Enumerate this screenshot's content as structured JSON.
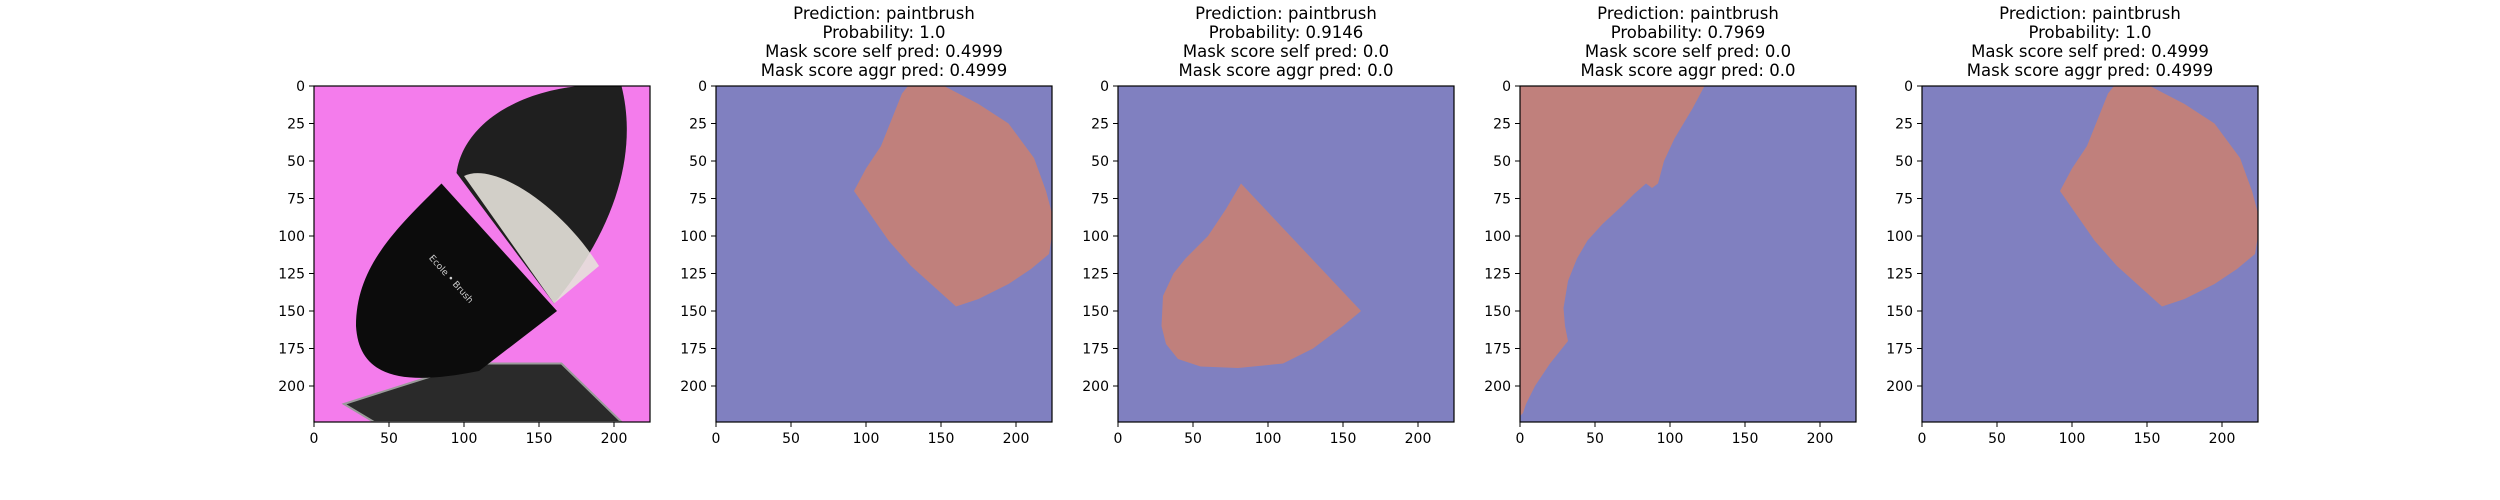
{
  "chart_data": [
    {
      "type": "image",
      "title_lines": [],
      "xlim": [
        0,
        224
      ],
      "ylim": [
        224,
        0
      ],
      "xticks": [
        0,
        50,
        100,
        150,
        200
      ],
      "yticks": [
        0,
        25,
        50,
        75,
        100,
        125,
        150,
        175,
        200
      ],
      "image": {
        "background": "#f47cec",
        "bristles": "#1f1f1f",
        "bristle_tips": "#e6e2da",
        "handle": "#0c0c0c",
        "base": "#2a2a2a",
        "handle_text": "Ecole • Brush"
      }
    },
    {
      "type": "heatmap",
      "title_lines": [
        "Prediction: paintbrush",
        "Probability: 1.0",
        "Mask score self pred: 0.4999",
        "Mask score aggr pred: 0.4999"
      ],
      "xlim": [
        0,
        224
      ],
      "ylim": [
        224,
        0
      ],
      "xticks": [
        0,
        50,
        100,
        150,
        200
      ],
      "yticks": [
        0,
        25,
        50,
        75,
        100,
        125,
        150,
        175,
        200
      ],
      "background_color": "#8080c0",
      "mask_color": "#c0807c",
      "mask_polygon": [
        [
          128,
          0
        ],
        [
          152,
          0
        ],
        [
          175,
          12
        ],
        [
          195,
          25
        ],
        [
          212,
          48
        ],
        [
          220,
          70
        ],
        [
          224,
          85
        ],
        [
          224,
          100
        ],
        [
          222,
          112
        ],
        [
          210,
          122
        ],
        [
          195,
          132
        ],
        [
          175,
          142
        ],
        [
          160,
          147
        ],
        [
          150,
          138
        ],
        [
          130,
          120
        ],
        [
          115,
          103
        ],
        [
          92,
          70
        ],
        [
          100,
          55
        ],
        [
          110,
          40
        ],
        [
          118,
          20
        ],
        [
          124,
          5
        ]
      ]
    },
    {
      "type": "heatmap",
      "title_lines": [
        "Prediction: paintbrush",
        "Probability: 0.9146",
        "Mask score self pred: 0.0",
        "Mask score aggr pred: 0.0"
      ],
      "xlim": [
        0,
        224
      ],
      "ylim": [
        224,
        0
      ],
      "xticks": [
        0,
        50,
        100,
        150,
        200
      ],
      "yticks": [
        0,
        25,
        50,
        75,
        100,
        125,
        150,
        175,
        200
      ],
      "background_color": "#8080c0",
      "mask_color": "#c0807c",
      "mask_polygon": [
        [
          82,
          65
        ],
        [
          162,
          150
        ],
        [
          150,
          160
        ],
        [
          130,
          175
        ],
        [
          110,
          185
        ],
        [
          80,
          188
        ],
        [
          55,
          187
        ],
        [
          40,
          182
        ],
        [
          32,
          172
        ],
        [
          29,
          160
        ],
        [
          30,
          140
        ],
        [
          37,
          125
        ],
        [
          45,
          115
        ],
        [
          60,
          100
        ],
        [
          72,
          82
        ]
      ]
    },
    {
      "type": "heatmap",
      "title_lines": [
        "Prediction: paintbrush",
        "Probability: 0.7969",
        "Mask score self pred: 0.0",
        "Mask score aggr pred: 0.0"
      ],
      "xlim": [
        0,
        224
      ],
      "ylim": [
        224,
        0
      ],
      "xticks": [
        0,
        50,
        100,
        150,
        200
      ],
      "yticks": [
        0,
        25,
        50,
        75,
        100,
        125,
        150,
        175,
        200
      ],
      "background_color": "#8080c0",
      "mask_color": "#c0807c",
      "mask_polygon": [
        [
          0,
          0
        ],
        [
          123,
          0
        ],
        [
          115,
          15
        ],
        [
          103,
          35
        ],
        [
          96,
          50
        ],
        [
          92,
          65
        ],
        [
          88,
          68
        ],
        [
          84,
          65
        ],
        [
          76,
          72
        ],
        [
          68,
          80
        ],
        [
          55,
          92
        ],
        [
          45,
          103
        ],
        [
          38,
          115
        ],
        [
          32,
          130
        ],
        [
          29,
          148
        ],
        [
          30,
          160
        ],
        [
          32,
          170
        ],
        [
          20,
          185
        ],
        [
          10,
          200
        ],
        [
          4,
          212
        ],
        [
          2,
          218
        ],
        [
          0,
          220
        ]
      ]
    },
    {
      "type": "heatmap",
      "title_lines": [
        "Prediction: paintbrush",
        "Probability: 1.0",
        "Mask score self pred: 0.4999",
        "Mask score aggr pred: 0.4999"
      ],
      "xlim": [
        0,
        224
      ],
      "ylim": [
        224,
        0
      ],
      "xticks": [
        0,
        50,
        100,
        150,
        200
      ],
      "yticks": [
        0,
        25,
        50,
        75,
        100,
        125,
        150,
        175,
        200
      ],
      "background_color": "#8080c0",
      "mask_color": "#c0807c",
      "mask_polygon": [
        [
          128,
          0
        ],
        [
          152,
          0
        ],
        [
          175,
          12
        ],
        [
          195,
          25
        ],
        [
          212,
          48
        ],
        [
          220,
          70
        ],
        [
          224,
          85
        ],
        [
          224,
          100
        ],
        [
          222,
          112
        ],
        [
          210,
          122
        ],
        [
          195,
          132
        ],
        [
          175,
          142
        ],
        [
          160,
          147
        ],
        [
          150,
          138
        ],
        [
          130,
          120
        ],
        [
          115,
          103
        ],
        [
          92,
          70
        ],
        [
          100,
          55
        ],
        [
          110,
          40
        ],
        [
          118,
          20
        ],
        [
          124,
          5
        ]
      ]
    }
  ]
}
